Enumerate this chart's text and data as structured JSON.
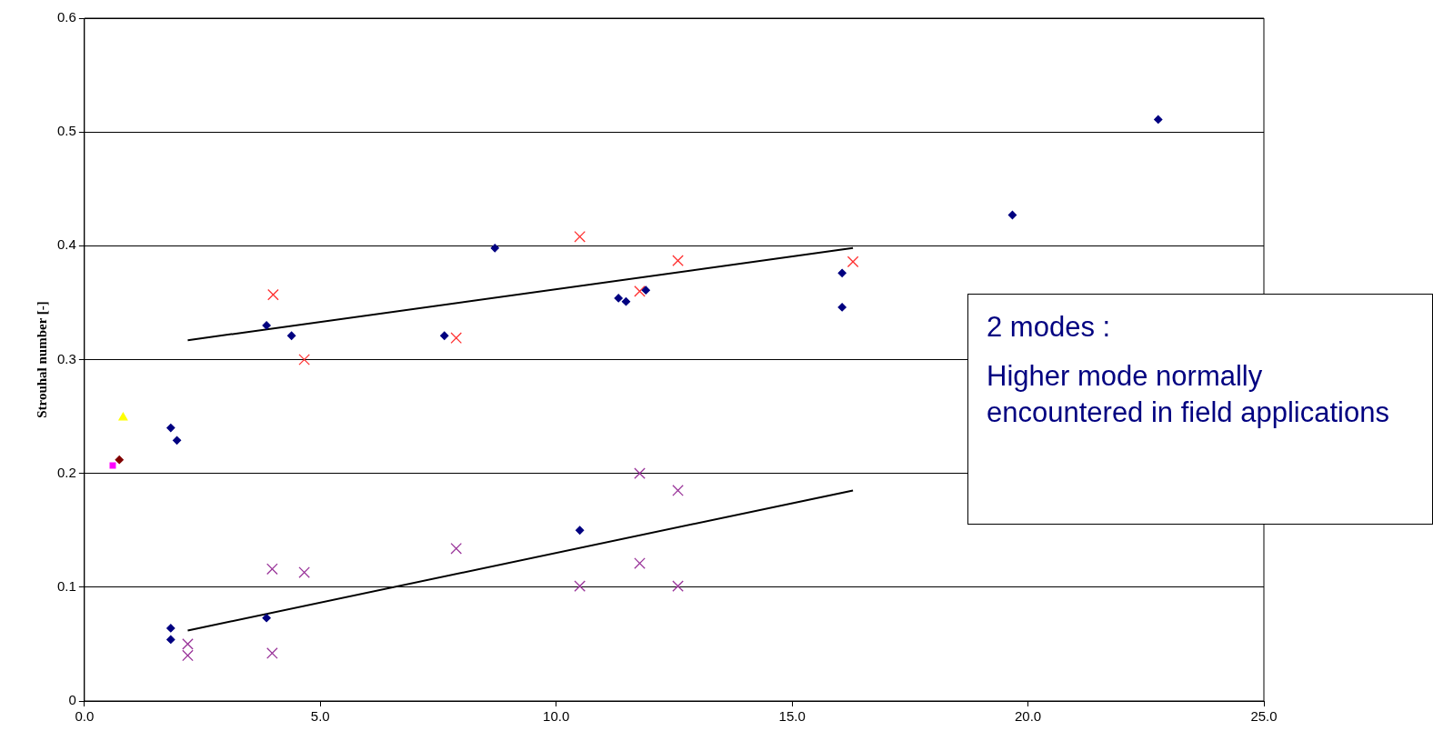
{
  "chart_data": {
    "type": "scatter",
    "ylabel": "Strouhal number [-]",
    "xlim": [
      0,
      25
    ],
    "xticks": [
      {
        "value": 0,
        "label": "0.0"
      },
      {
        "value": 5,
        "label": "5.0"
      },
      {
        "value": 10,
        "label": "10.0"
      },
      {
        "value": 15,
        "label": "15.0"
      },
      {
        "value": 20,
        "label": "20.0"
      },
      {
        "value": 25,
        "label": "25.0"
      }
    ],
    "ylim": [
      0,
      0.6
    ],
    "yticks": [
      0,
      0.1,
      0.2,
      0.3,
      0.4,
      0.5,
      0.6
    ],
    "grid": "y",
    "legend": false,
    "annotations": [
      "2 modes :",
      "Higher mode normally encountered in field applications"
    ],
    "series": [
      {
        "color": "#000080",
        "marker": "diamond",
        "x": [
          22.76,
          19.67,
          8.7,
          16.06,
          16.06,
          11.9,
          11.32,
          11.48,
          3.86,
          4.39,
          7.63,
          1.83,
          1.96,
          10.5,
          1.83,
          1.83,
          3.86
        ],
        "values": [
          0.511,
          0.427,
          0.398,
          0.376,
          0.346,
          0.361,
          0.354,
          0.351,
          0.33,
          0.321,
          0.321,
          0.24,
          0.229,
          0.15,
          0.064,
          0.054,
          0.073
        ]
      },
      {
        "color": "#ff3030",
        "marker": "cross",
        "x": [
          4.0,
          4.66,
          7.88,
          10.5,
          11.77,
          12.58,
          16.29
        ],
        "values": [
          0.357,
          0.3,
          0.319,
          0.408,
          0.36,
          0.387,
          0.386
        ]
      },
      {
        "color": "#993399",
        "marker": "cross",
        "x": [
          2.19,
          2.19,
          3.98,
          3.98,
          4.66,
          7.88,
          10.5,
          11.77,
          11.77,
          12.58,
          12.58
        ],
        "values": [
          0.05,
          0.04,
          0.116,
          0.042,
          0.113,
          0.134,
          0.101,
          0.2,
          0.121,
          0.185,
          0.101
        ]
      },
      {
        "color": "#ffff00",
        "marker": "triangle",
        "x": [
          0.82
        ],
        "values": [
          0.249
        ]
      },
      {
        "color": "#ff00ff",
        "marker": "square",
        "x": [
          0.6
        ],
        "values": [
          0.207
        ]
      },
      {
        "color": "#800000",
        "marker": "diamond",
        "x": [
          0.74
        ],
        "values": [
          0.212
        ]
      },
      {
        "type": "line",
        "color": "#000000",
        "marker": "none",
        "x": [
          2.19,
          16.29
        ],
        "values": [
          0.317,
          0.398
        ]
      },
      {
        "type": "line",
        "color": "#000000",
        "marker": "none",
        "x": [
          2.19,
          16.29
        ],
        "values": [
          0.062,
          0.185
        ]
      }
    ]
  }
}
